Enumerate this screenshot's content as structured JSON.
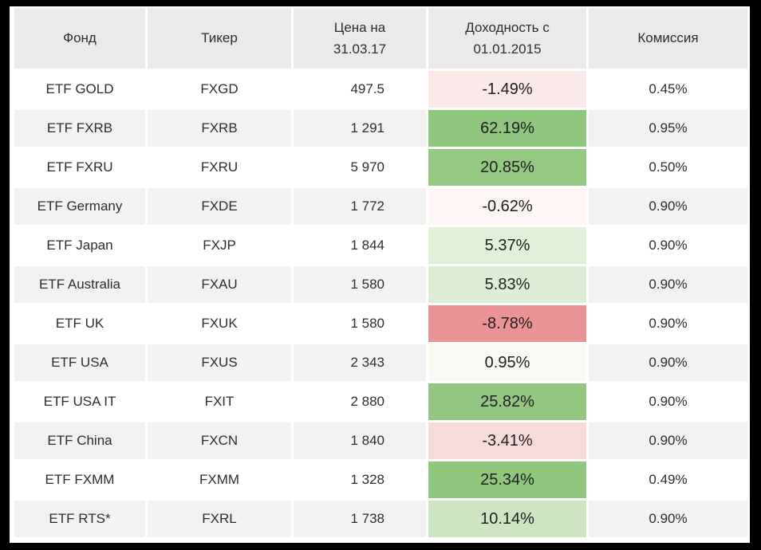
{
  "colors": {
    "page_frame": "#000000",
    "canvas_bg": "#ffffff",
    "header_bg": "#eaeaea",
    "stripe_bg": "#f2f2f2",
    "text": "#2d2d2d"
  },
  "chart_data": {
    "type": "table",
    "columns": [
      "Фонд",
      "Тикер",
      "Цена на\n31.03.17",
      "Доходность с\n01.01.2015",
      "Комиссия"
    ],
    "rows": [
      {
        "fund": "ETF GOLD",
        "ticker": "FXGD",
        "price": "497.5",
        "return": "-1.49%",
        "return_bg": "#fbe9e9",
        "commission": "0.45%"
      },
      {
        "fund": "ETF FXRB",
        "ticker": "FXRB",
        "price": "1 291",
        "return": "62.19%",
        "return_bg": "#90c77e",
        "commission": "0.95%"
      },
      {
        "fund": "ETF FXRU",
        "ticker": "FXRU",
        "price": "5 970",
        "return": "20.85%",
        "return_bg": "#94c982",
        "commission": "0.50%"
      },
      {
        "fund": "ETF Germany",
        "ticker": "FXDE",
        "price": "1 772",
        "return": "-0.62%",
        "return_bg": "#fdf6f5",
        "commission": "0.90%"
      },
      {
        "fund": "ETF Japan",
        "ticker": "FXJP",
        "price": "1 844",
        "return": "5.37%",
        "return_bg": "#e2f0da",
        "commission": "0.90%"
      },
      {
        "fund": "ETF Australia",
        "ticker": "FXAU",
        "price": "1 580",
        "return": "5.83%",
        "return_bg": "#deeed6",
        "commission": "0.90%"
      },
      {
        "fund": "ETF UK",
        "ticker": "FXUK",
        "price": "1 580",
        "return": "-8.78%",
        "return_bg": "#ea9394",
        "commission": "0.90%"
      },
      {
        "fund": "ETF USA",
        "ticker": "FXUS",
        "price": "2 343",
        "return": "0.95%",
        "return_bg": "#f6faf2",
        "commission": "0.90%"
      },
      {
        "fund": "ETF USA IT",
        "ticker": "FXIT",
        "price": "2 880",
        "return": "25.82%",
        "return_bg": "#91c780",
        "commission": "0.90%"
      },
      {
        "fund": "ETF China",
        "ticker": "FXCN",
        "price": "1 840",
        "return": "-3.41%",
        "return_bg": "#f7dbdb",
        "commission": "0.90%"
      },
      {
        "fund": "ETF FXMM",
        "ticker": "FXMM",
        "price": "1 328",
        "return": "25.34%",
        "return_bg": "#90c77e",
        "commission": "0.49%"
      },
      {
        "fund": "ETF RTS*",
        "ticker": "FXRL",
        "price": "1 738",
        "return": "10.14%",
        "return_bg": "#cde5c0",
        "commission": "0.90%"
      }
    ]
  }
}
